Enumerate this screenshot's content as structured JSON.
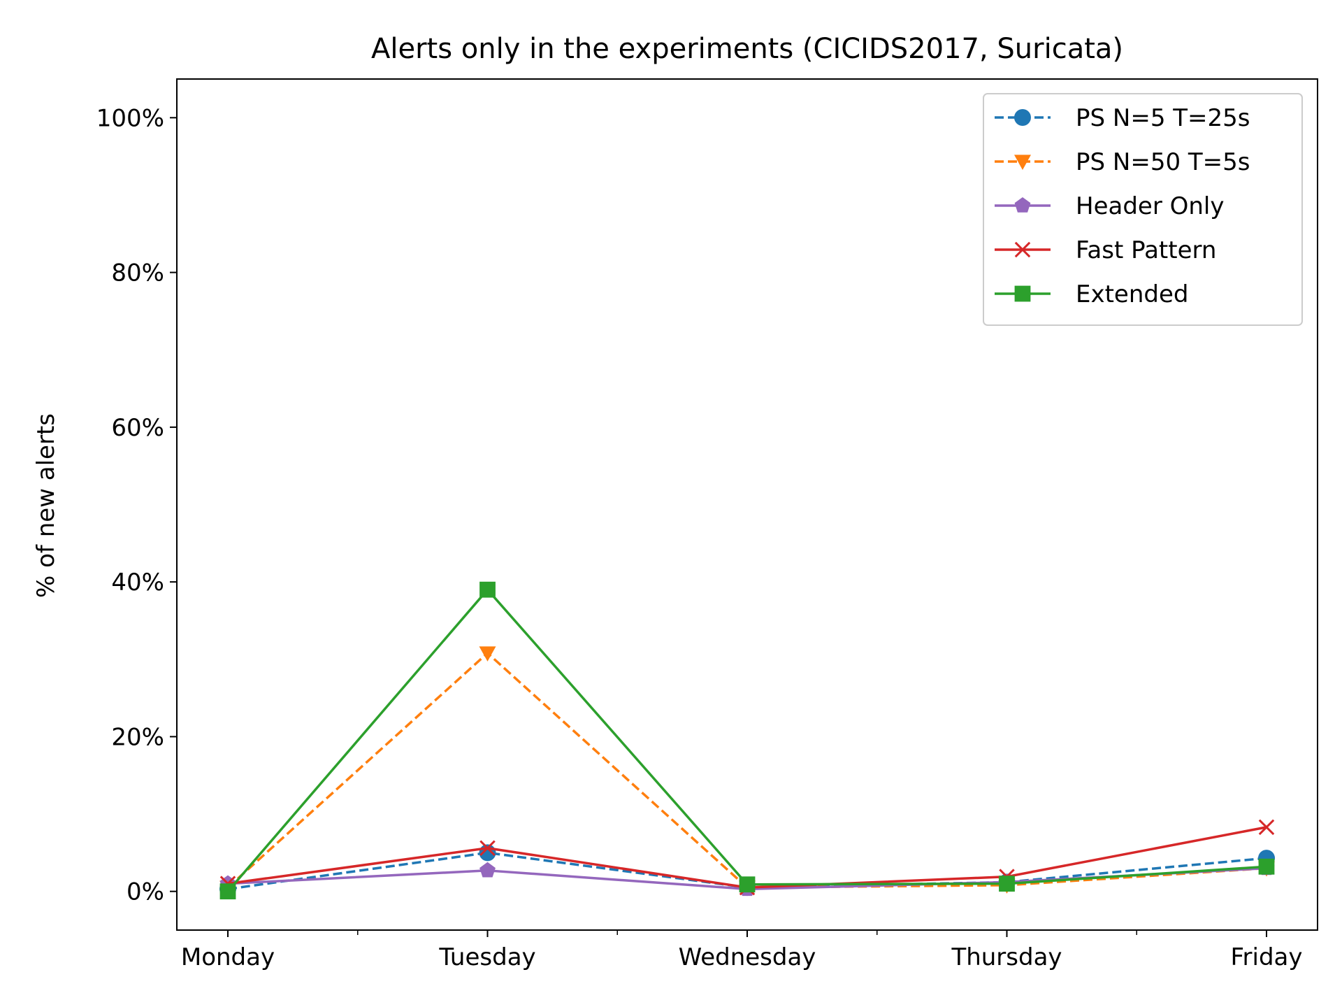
{
  "chart_data": {
    "type": "line",
    "title": "Alerts only in the experiments (CICIDS2017, Suricata)",
    "xlabel": "",
    "ylabel": "% of new alerts",
    "categories": [
      "Monday",
      "Tuesday",
      "Wednesday",
      "Thursday",
      "Friday"
    ],
    "ylim": [
      -5,
      105
    ],
    "yticks": [
      0,
      20,
      40,
      60,
      80,
      100
    ],
    "ytick_labels": [
      "0%",
      "20%",
      "40%",
      "60%",
      "80%",
      "100%"
    ],
    "grid": false,
    "legend_position": "top-right",
    "series": [
      {
        "name": "PS N=5 T=25s",
        "values": [
          0.3,
          5.0,
          0.5,
          1.2,
          4.3
        ],
        "color": "#1f77b4",
        "dashed": true,
        "marker": "circle"
      },
      {
        "name": "PS N=50 T=5s",
        "values": [
          0.5,
          30.8,
          0.5,
          0.8,
          3.0
        ],
        "color": "#ff7f0e",
        "dashed": true,
        "marker": "triangle-down"
      },
      {
        "name": "Header Only",
        "values": [
          1.0,
          2.7,
          0.3,
          1.2,
          3.0
        ],
        "color": "#9467bd",
        "dashed": false,
        "marker": "pentagon"
      },
      {
        "name": "Fast Pattern",
        "values": [
          1.0,
          5.6,
          0.5,
          1.9,
          8.3
        ],
        "color": "#d62728",
        "dashed": false,
        "marker": "x"
      },
      {
        "name": "Extended",
        "values": [
          0.0,
          39.0,
          0.9,
          1.0,
          3.2
        ],
        "color": "#2ca02c",
        "dashed": false,
        "marker": "square"
      }
    ]
  }
}
